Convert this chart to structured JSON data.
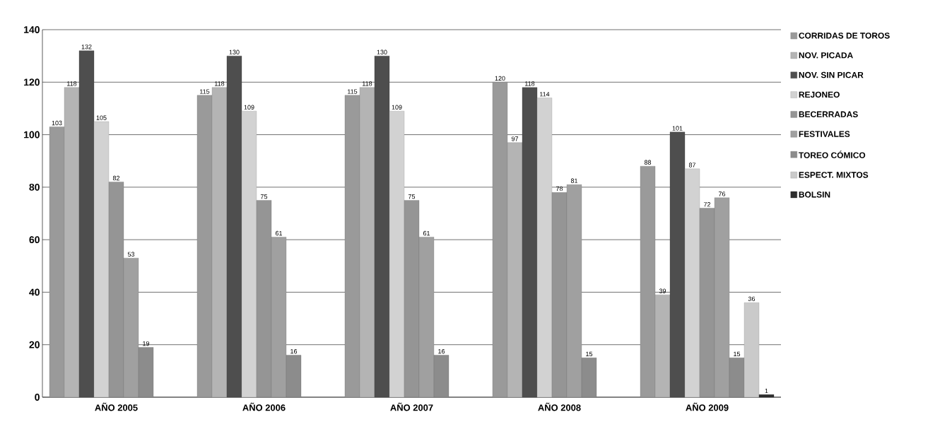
{
  "chart_data": {
    "type": "bar",
    "categories": [
      "AÑO 2005",
      "AÑO 2006",
      "AÑO 2007",
      "AÑO 2008",
      "AÑO 2009"
    ],
    "series": [
      {
        "name": "CORRIDAS DE TOROS",
        "color": "#9a9a9a",
        "values": [
          103,
          115,
          115,
          120,
          88
        ]
      },
      {
        "name": "NOV. PICADA",
        "color": "#b4b4b4",
        "values": [
          118,
          118,
          118,
          97,
          39
        ]
      },
      {
        "name": "NOV. SIN PICAR",
        "color": "#4e4e4e",
        "values": [
          132,
          130,
          130,
          118,
          101
        ]
      },
      {
        "name": "REJONEO",
        "color": "#d2d2d2",
        "values": [
          105,
          109,
          109,
          114,
          87
        ]
      },
      {
        "name": "BECERRADAS",
        "color": "#959595",
        "values": [
          82,
          75,
          75,
          78,
          72
        ]
      },
      {
        "name": "FESTIVALES",
        "color": "#a0a0a0",
        "values": [
          53,
          61,
          61,
          81,
          76
        ]
      },
      {
        "name": "TOREO CÓMICO",
        "color": "#8c8c8c",
        "values": [
          19,
          16,
          16,
          15,
          15
        ]
      },
      {
        "name": "ESPECT. MIXTOS",
        "color": "#cacaca",
        "values": [
          null,
          null,
          null,
          null,
          36
        ]
      },
      {
        "name": "BOLSIN",
        "color": "#2e2e2e",
        "values": [
          null,
          null,
          null,
          null,
          1
        ]
      }
    ],
    "ylim": [
      0,
      140
    ],
    "yticks": [
      0,
      20,
      40,
      60,
      80,
      100,
      120,
      140
    ],
    "grid": "y",
    "legend": "right",
    "data_labels": true
  }
}
